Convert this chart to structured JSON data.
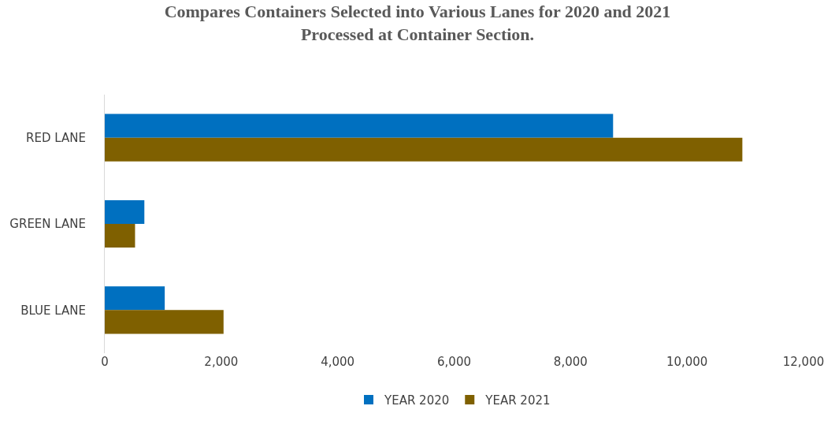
{
  "chart_data": {
    "type": "bar",
    "orientation": "horizontal",
    "title": "Compares Containers Selected into Various Lanes for 2020 and 2021\nProcessed at Container Section.",
    "categories": [
      "RED LANE",
      "GREEN LANE",
      "BLUE LANE"
    ],
    "series": [
      {
        "name": "YEAR 2020",
        "color": "#0070c0",
        "values": [
          8730,
          680,
          1030
        ]
      },
      {
        "name": "YEAR 2021",
        "color": "#7f6000",
        "values": [
          10950,
          520,
          2040
        ]
      }
    ],
    "xlim": [
      0,
      12000
    ],
    "xticks": [
      {
        "value": 0,
        "label": "0"
      },
      {
        "value": 2000,
        "label": "2,000"
      },
      {
        "value": 4000,
        "label": "4,000"
      },
      {
        "value": 6000,
        "label": "6,000"
      },
      {
        "value": 8000,
        "label": "8,000"
      },
      {
        "value": 10000,
        "label": "10,000"
      },
      {
        "value": 12000,
        "label": "12,000"
      }
    ],
    "grid": false,
    "legend": "bottom"
  }
}
